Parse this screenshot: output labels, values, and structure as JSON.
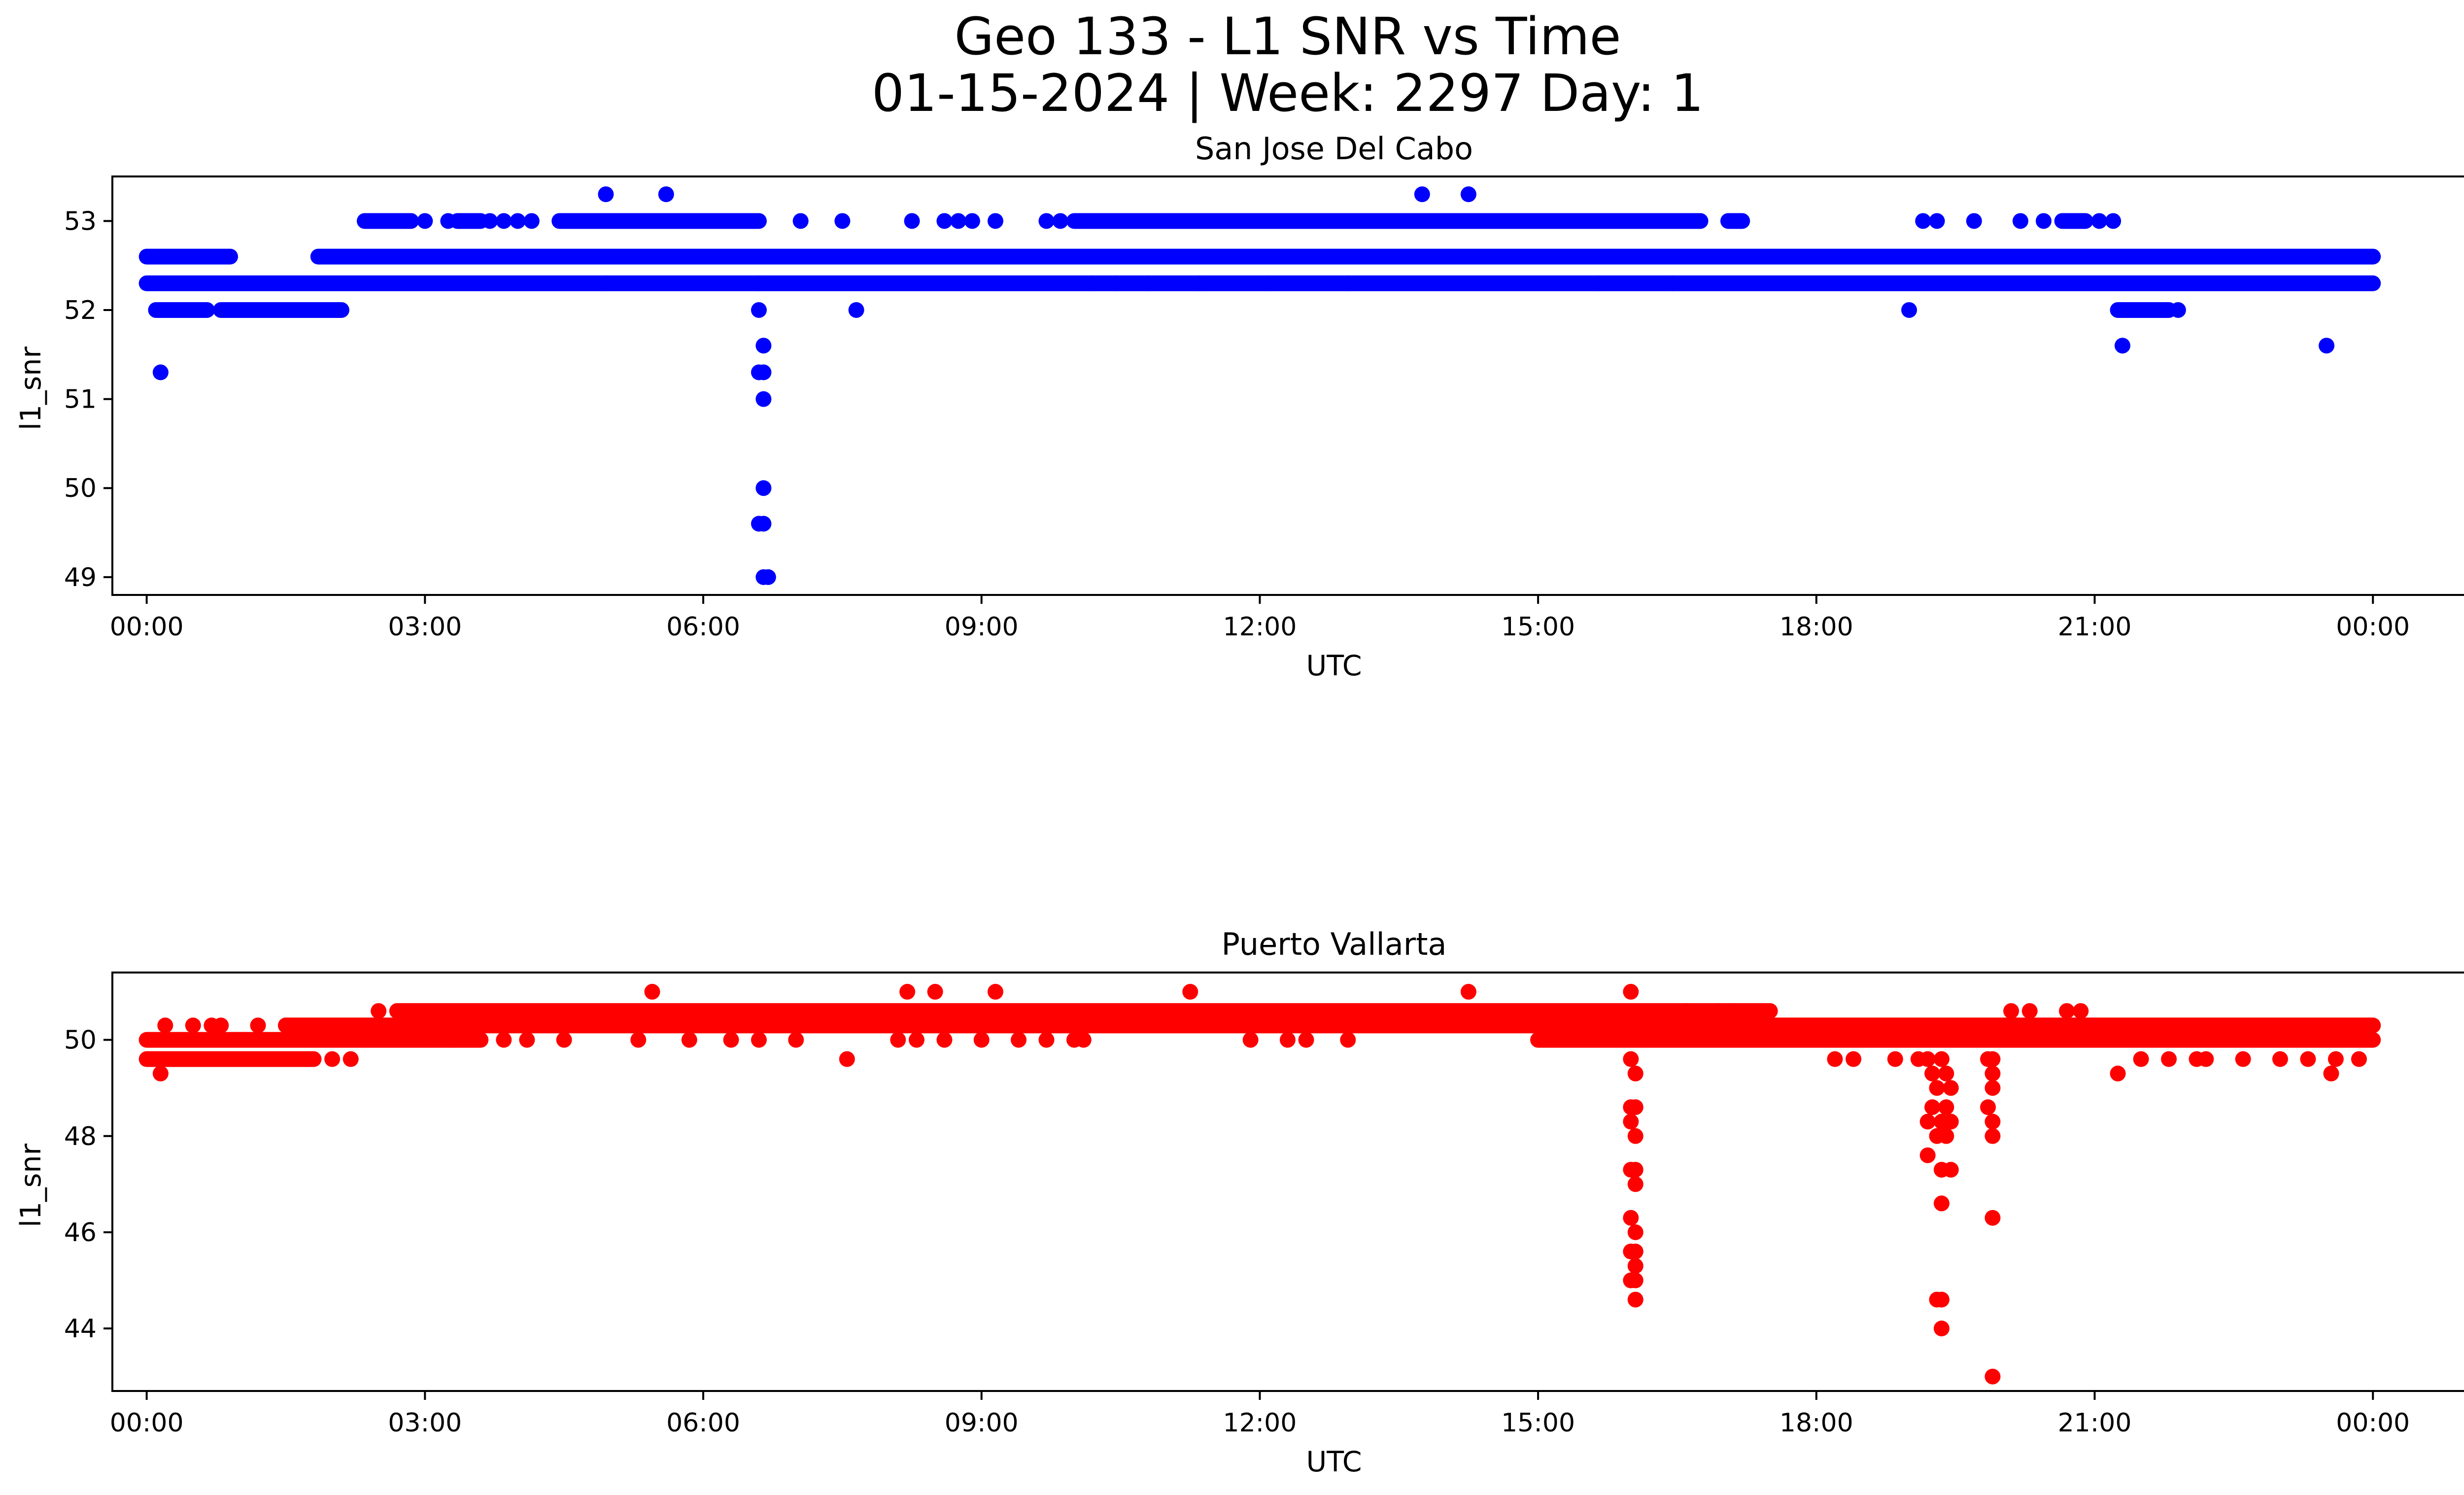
{
  "figure": {
    "title_line1": "Geo 133 - L1 SNR vs Time",
    "title_line2": "01-15-2024 | Week: 2297 Day: 1"
  },
  "chart_data": [
    {
      "type": "scatter",
      "title": "San Jose Del Cabo",
      "xlabel": "UTC",
      "ylabel": "l1_snr",
      "color": "#0000ff",
      "x_unit": "hours since 00:00 UTC",
      "xlim": [
        -0.37,
        25.97
      ],
      "ylim": [
        48.8,
        53.5
      ],
      "x_ticks": [
        0,
        3,
        6,
        9,
        12,
        15,
        18,
        21,
        24
      ],
      "x_tick_labels": [
        "00:00",
        "03:00",
        "06:00",
        "09:00",
        "12:00",
        "15:00",
        "18:00",
        "21:00",
        "00:00"
      ],
      "y_ticks": [
        49,
        50,
        51,
        52,
        53
      ],
      "y_tick_labels": [
        "49",
        "50",
        "51",
        "52",
        "53"
      ],
      "bands": [
        {
          "y": 52.6,
          "ranges": [
            [
              0.0,
              0.9
            ],
            [
              1.85,
              24.0
            ]
          ]
        },
        {
          "y": 52.3,
          "ranges": [
            [
              0.0,
              24.0
            ]
          ]
        },
        {
          "y": 53.0,
          "ranges": [
            [
              2.35,
              2.85
            ],
            [
              3.35,
              3.6
            ],
            [
              4.45,
              6.6
            ],
            [
              10.0,
              16.75
            ],
            [
              17.05,
              17.2
            ],
            [
              20.65,
              20.9
            ]
          ]
        },
        {
          "y": 52.0,
          "ranges": [
            [
              0.1,
              0.65
            ],
            [
              0.8,
              2.1
            ],
            [
              21.25,
              21.8
            ]
          ]
        }
      ],
      "points": [
        [
          0.15,
          51.3
        ],
        [
          4.95,
          53.3
        ],
        [
          5.6,
          53.3
        ],
        [
          13.75,
          53.3
        ],
        [
          14.25,
          53.3
        ],
        [
          3.0,
          53.0
        ],
        [
          3.25,
          53.0
        ],
        [
          3.7,
          53.0
        ],
        [
          3.85,
          53.0
        ],
        [
          4.0,
          53.0
        ],
        [
          4.15,
          53.0
        ],
        [
          7.05,
          53.0
        ],
        [
          7.5,
          53.0
        ],
        [
          8.25,
          53.0
        ],
        [
          8.6,
          53.0
        ],
        [
          8.75,
          53.0
        ],
        [
          8.9,
          53.0
        ],
        [
          9.15,
          53.0
        ],
        [
          9.7,
          53.0
        ],
        [
          9.85,
          53.0
        ],
        [
          19.15,
          53.0
        ],
        [
          19.3,
          53.0
        ],
        [
          19.7,
          53.0
        ],
        [
          20.2,
          53.0
        ],
        [
          20.45,
          53.0
        ],
        [
          21.05,
          53.0
        ],
        [
          21.2,
          53.0
        ],
        [
          4.95,
          52.3
        ],
        [
          6.6,
          52.3
        ],
        [
          7.65,
          52.0
        ],
        [
          10.2,
          52.3
        ],
        [
          10.45,
          52.3
        ],
        [
          10.8,
          52.3
        ],
        [
          11.35,
          52.3
        ],
        [
          12.1,
          52.3
        ],
        [
          12.95,
          52.3
        ],
        [
          15.65,
          52.3
        ],
        [
          16.45,
          52.3
        ],
        [
          19.0,
          52.0
        ],
        [
          21.3,
          51.6
        ],
        [
          21.9,
          52.0
        ],
        [
          23.5,
          51.6
        ],
        [
          6.6,
          52.0
        ],
        [
          6.65,
          51.6
        ],
        [
          6.6,
          51.3
        ],
        [
          6.65,
          51.3
        ],
        [
          6.65,
          51.0
        ],
        [
          6.65,
          50.0
        ],
        [
          6.65,
          49.6
        ],
        [
          6.6,
          49.6
        ],
        [
          6.65,
          49.0
        ],
        [
          6.7,
          49.0
        ]
      ]
    },
    {
      "type": "scatter",
      "title": "Puerto Vallarta",
      "xlabel": "UTC",
      "ylabel": "l1_snr",
      "color": "#ff0000",
      "x_unit": "hours since 00:00 UTC",
      "xlim": [
        -0.37,
        25.97
      ],
      "ylim": [
        42.7,
        51.4
      ],
      "x_ticks": [
        0,
        3,
        6,
        9,
        12,
        15,
        18,
        21,
        24
      ],
      "x_tick_labels": [
        "00:00",
        "03:00",
        "06:00",
        "09:00",
        "12:00",
        "15:00",
        "18:00",
        "21:00",
        "00:00"
      ],
      "y_ticks": [
        44,
        46,
        48,
        50
      ],
      "y_tick_labels": [
        "44",
        "46",
        "48",
        "50"
      ],
      "bands": [
        {
          "y": 50.0,
          "ranges": [
            [
              0.0,
              3.6
            ],
            [
              15.0,
              24.0
            ]
          ]
        },
        {
          "y": 49.6,
          "ranges": [
            [
              0.0,
              1.8
            ]
          ]
        },
        {
          "y": 50.3,
          "ranges": [
            [
              1.5,
              24.0
            ]
          ]
        },
        {
          "y": 50.6,
          "ranges": [
            [
              2.7,
              17.5
            ]
          ]
        }
      ],
      "points": [
        [
          0.15,
          49.3
        ],
        [
          0.2,
          50.3
        ],
        [
          0.5,
          50.3
        ],
        [
          0.7,
          50.3
        ],
        [
          0.8,
          50.3
        ],
        [
          1.2,
          50.3
        ],
        [
          1.5,
          50.3
        ],
        [
          2.0,
          49.6
        ],
        [
          2.2,
          49.6
        ],
        [
          2.5,
          50.6
        ],
        [
          3.0,
          50.0
        ],
        [
          3.3,
          50.0
        ],
        [
          3.85,
          50.0
        ],
        [
          4.1,
          50.0
        ],
        [
          4.5,
          50.0
        ],
        [
          5.3,
          50.0
        ],
        [
          5.85,
          50.0
        ],
        [
          6.3,
          50.0
        ],
        [
          6.6,
          50.0
        ],
        [
          7.0,
          50.0
        ],
        [
          7.55,
          49.6
        ],
        [
          8.1,
          50.0
        ],
        [
          8.3,
          50.0
        ],
        [
          8.6,
          50.0
        ],
        [
          9.0,
          50.0
        ],
        [
          9.4,
          50.0
        ],
        [
          9.7,
          50.0
        ],
        [
          10.0,
          50.0
        ],
        [
          10.1,
          50.0
        ],
        [
          11.9,
          50.0
        ],
        [
          12.3,
          50.0
        ],
        [
          12.5,
          50.0
        ],
        [
          12.95,
          50.0
        ],
        [
          5.45,
          51.0
        ],
        [
          8.2,
          51.0
        ],
        [
          8.5,
          51.0
        ],
        [
          9.15,
          51.0
        ],
        [
          11.25,
          51.0
        ],
        [
          14.25,
          51.0
        ],
        [
          16.0,
          51.0
        ],
        [
          16.6,
          50.6
        ],
        [
          16.95,
          50.6
        ],
        [
          17.1,
          50.6
        ],
        [
          18.2,
          49.6
        ],
        [
          18.4,
          49.6
        ],
        [
          18.85,
          49.6
        ],
        [
          19.1,
          49.6
        ],
        [
          20.1,
          50.6
        ],
        [
          20.3,
          50.6
        ],
        [
          20.7,
          50.6
        ],
        [
          20.85,
          50.6
        ],
        [
          21.25,
          49.3
        ],
        [
          21.5,
          49.6
        ],
        [
          21.8,
          49.6
        ],
        [
          22.1,
          49.6
        ],
        [
          22.2,
          49.6
        ],
        [
          22.6,
          49.6
        ],
        [
          23.0,
          49.6
        ],
        [
          23.3,
          49.6
        ],
        [
          23.55,
          49.3
        ],
        [
          23.6,
          49.6
        ],
        [
          23.85,
          49.6
        ],
        [
          23.95,
          50.3
        ],
        [
          16.0,
          49.6
        ],
        [
          16.05,
          49.3
        ],
        [
          16.0,
          48.6
        ],
        [
          16.05,
          48.6
        ],
        [
          16.0,
          48.3
        ],
        [
          16.05,
          48.0
        ],
        [
          16.0,
          47.3
        ],
        [
          16.05,
          47.3
        ],
        [
          16.05,
          47.0
        ],
        [
          16.0,
          46.3
        ],
        [
          16.05,
          46.0
        ],
        [
          16.05,
          45.6
        ],
        [
          16.0,
          45.6
        ],
        [
          16.05,
          45.3
        ],
        [
          16.0,
          45.0
        ],
        [
          16.05,
          45.0
        ],
        [
          16.05,
          44.6
        ],
        [
          19.2,
          49.6
        ],
        [
          19.25,
          49.3
        ],
        [
          19.3,
          49.0
        ],
        [
          19.35,
          49.6
        ],
        [
          19.4,
          49.3
        ],
        [
          19.45,
          49.0
        ],
        [
          19.25,
          48.6
        ],
        [
          19.4,
          48.6
        ],
        [
          19.2,
          48.3
        ],
        [
          19.35,
          48.3
        ],
        [
          19.45,
          48.3
        ],
        [
          19.3,
          48.0
        ],
        [
          19.4,
          48.0
        ],
        [
          19.2,
          47.6
        ],
        [
          19.35,
          47.3
        ],
        [
          19.45,
          47.3
        ],
        [
          19.35,
          46.6
        ],
        [
          19.3,
          44.6
        ],
        [
          19.35,
          44.6
        ],
        [
          19.35,
          44.0
        ],
        [
          19.85,
          49.6
        ],
        [
          19.9,
          49.6
        ],
        [
          19.9,
          49.3
        ],
        [
          19.9,
          49.0
        ],
        [
          19.85,
          48.6
        ],
        [
          19.9,
          48.3
        ],
        [
          19.9,
          48.0
        ],
        [
          19.9,
          46.3
        ],
        [
          19.9,
          43.0
        ]
      ]
    }
  ]
}
